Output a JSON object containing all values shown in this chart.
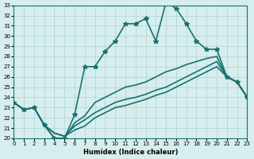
{
  "xlabel": "Humidex (Indice chaleur)",
  "ylabel": "",
  "xlim": [
    0,
    23
  ],
  "ylim": [
    20,
    33
  ],
  "xticks": [
    0,
    1,
    2,
    3,
    4,
    5,
    6,
    7,
    8,
    9,
    10,
    11,
    12,
    13,
    14,
    15,
    16,
    17,
    18,
    19,
    20,
    21,
    22,
    23
  ],
  "yticks": [
    20,
    21,
    22,
    23,
    24,
    25,
    26,
    27,
    28,
    29,
    30,
    31,
    32,
    33
  ],
  "background_color": "#d6eeee",
  "grid_color": "#b0d0d0",
  "line_color": "#1a7070",
  "lines": [
    {
      "x": [
        0,
        1,
        2,
        3,
        4,
        5,
        6,
        7,
        8,
        9,
        10,
        11,
        12,
        13,
        14,
        15,
        16,
        17,
        18,
        19,
        20,
        21,
        22,
        23
      ],
      "y": [
        23.5,
        22.8,
        23.0,
        21.3,
        20.0,
        20.0,
        22.3,
        27.0,
        27.0,
        28.5,
        29.5,
        31.2,
        31.2,
        31.7,
        29.5,
        33.3,
        32.7,
        31.2,
        29.5,
        28.7,
        28.7,
        26.0,
        25.5,
        24.0
      ],
      "marker": "*",
      "linewidth": 1.2,
      "markersize": 4
    },
    {
      "x": [
        0,
        1,
        2,
        3,
        4,
        5,
        6,
        7,
        8,
        9,
        10,
        11,
        12,
        13,
        14,
        15,
        16,
        17,
        18,
        19,
        20,
        21,
        22,
        23
      ],
      "y": [
        23.5,
        22.8,
        23.0,
        21.3,
        20.0,
        20.0,
        21.5,
        22.2,
        23.5,
        24.0,
        24.5,
        25.0,
        25.2,
        25.5,
        26.0,
        26.5,
        26.8,
        27.2,
        27.5,
        27.8,
        28.0,
        26.0,
        25.5,
        24.0
      ],
      "marker": null,
      "linewidth": 1.2,
      "markersize": 0
    },
    {
      "x": [
        0,
        1,
        2,
        3,
        4,
        5,
        6,
        7,
        8,
        9,
        10,
        11,
        12,
        13,
        14,
        15,
        16,
        17,
        18,
        19,
        20,
        21,
        22,
        23
      ],
      "y": [
        23.5,
        22.8,
        23.0,
        21.3,
        20.5,
        20.2,
        21.2,
        21.8,
        22.5,
        23.0,
        23.5,
        23.8,
        24.0,
        24.3,
        24.7,
        25.0,
        25.5,
        26.0,
        26.5,
        27.0,
        27.5,
        26.0,
        25.5,
        24.0
      ],
      "marker": null,
      "linewidth": 1.2,
      "markersize": 0
    },
    {
      "x": [
        0,
        1,
        2,
        3,
        4,
        5,
        6,
        7,
        8,
        9,
        10,
        11,
        12,
        13,
        14,
        15,
        16,
        17,
        18,
        19,
        20,
        21,
        22,
        23
      ],
      "y": [
        23.5,
        22.8,
        23.0,
        21.3,
        20.5,
        20.2,
        20.8,
        21.2,
        22.0,
        22.5,
        23.0,
        23.2,
        23.5,
        23.8,
        24.2,
        24.5,
        25.0,
        25.5,
        26.0,
        26.5,
        27.0,
        26.0,
        25.5,
        24.0
      ],
      "marker": null,
      "linewidth": 1.2,
      "markersize": 0
    }
  ]
}
